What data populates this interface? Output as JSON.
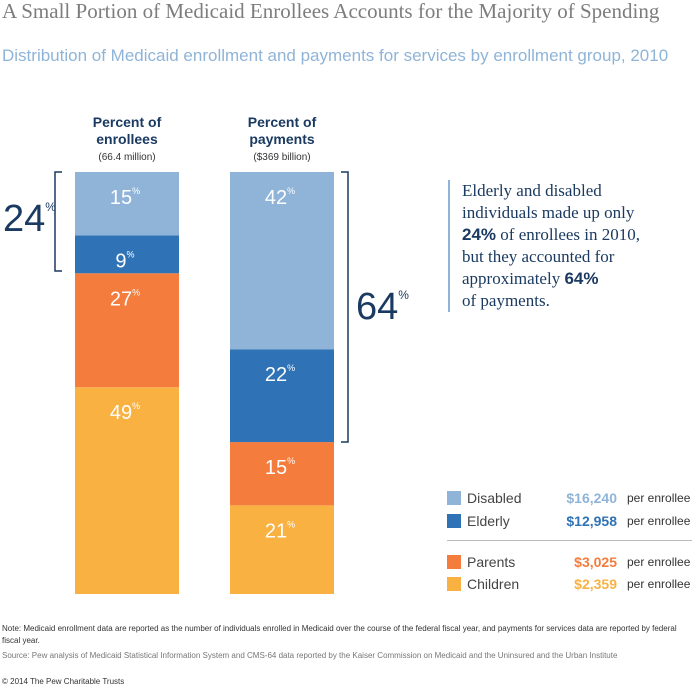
{
  "header": {
    "title": "A Small Portion of Medicaid Enrollees Accounts for the Majority of Spending",
    "subtitle": "Distribution of Medicaid enrollment and payments for services by enrollment group, 2010"
  },
  "chart_data": {
    "type": "bar",
    "stacked": true,
    "categories": [
      "Percent of enrollees",
      "Percent of payments"
    ],
    "category_subtitles": [
      "(66.4 million)",
      "($369 billion)"
    ],
    "series": [
      {
        "name": "Children",
        "values": [
          49,
          21
        ],
        "color": "#f9b142"
      },
      {
        "name": "Parents",
        "values": [
          27,
          15
        ],
        "color": "#f47c3c"
      },
      {
        "name": "Elderly",
        "values": [
          9,
          22
        ],
        "color": "#2f73b6"
      },
      {
        "name": "Disabled",
        "values": [
          15,
          42
        ],
        "color": "#8fb4d8"
      }
    ],
    "bracket_labels": [
      {
        "text": "24",
        "unit": "%",
        "bar": "Percent of enrollees",
        "covers": [
          "Elderly",
          "Disabled"
        ]
      },
      {
        "text": "64",
        "unit": "%",
        "bar": "Percent of payments",
        "covers": [
          "Elderly",
          "Disabled"
        ]
      }
    ],
    "ylim": [
      0,
      100
    ]
  },
  "callout": {
    "line1": "Elderly and disabled",
    "line2": "individuals made up only",
    "pct1": "24%",
    "line3": " of enrollees in 2010,",
    "line4": "but they accounted for",
    "line5": "approximately ",
    "pct2": "64%",
    "line6": "of payments."
  },
  "legend": [
    {
      "name": "Disabled",
      "value": "$16,240",
      "unit": "per enrollee",
      "color": "#8fb4d8"
    },
    {
      "name": "Elderly",
      "value": "$12,958",
      "unit": "per enrollee",
      "color": "#2f73b6"
    },
    {
      "name": "Parents",
      "value": "$3,025",
      "unit": "per enrollee",
      "color": "#f47c3c"
    },
    {
      "name": "Children",
      "value": "$2,359",
      "unit": "per enrollee",
      "color": "#f9b142"
    }
  ],
  "footer": {
    "note": "Note: Medicaid enrollment data are reported as the number of individuals enrolled in Medicaid over the course of the federal fiscal year, and payments for services data are reported by federal fiscal year.",
    "source": "Source: Pew analysis of Medicaid Statistical Information System and CMS-64 data reported by the Kaiser Commission on Medicaid and the Uninsured and the Urban Institute",
    "copyright": "© 2014 The Pew Charitable Trusts"
  },
  "colors": {
    "navy": "#1b3a61",
    "accent": "#8fb4d8"
  }
}
